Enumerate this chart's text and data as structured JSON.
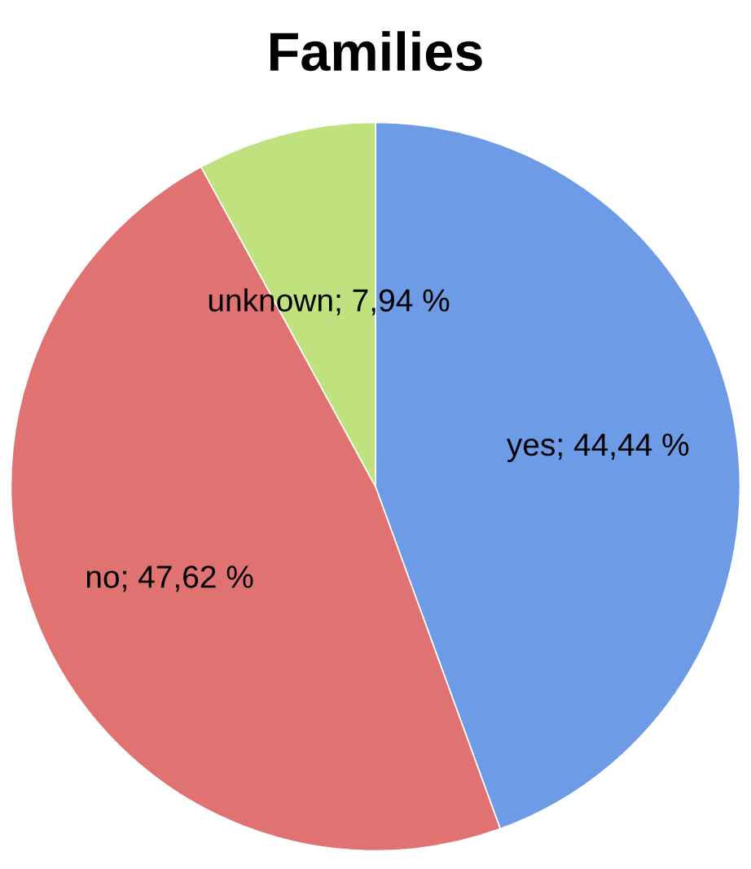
{
  "chart_data": {
    "type": "pie",
    "title": "Families",
    "categories": [
      "yes",
      "no",
      "unknown"
    ],
    "values": [
      44.44,
      47.62,
      7.94
    ],
    "value_labels": [
      "44,44 %",
      "47,62 %",
      "7,94 %"
    ],
    "colors": [
      "#6e9be6",
      "#e07371",
      "#bfe27e"
    ]
  }
}
